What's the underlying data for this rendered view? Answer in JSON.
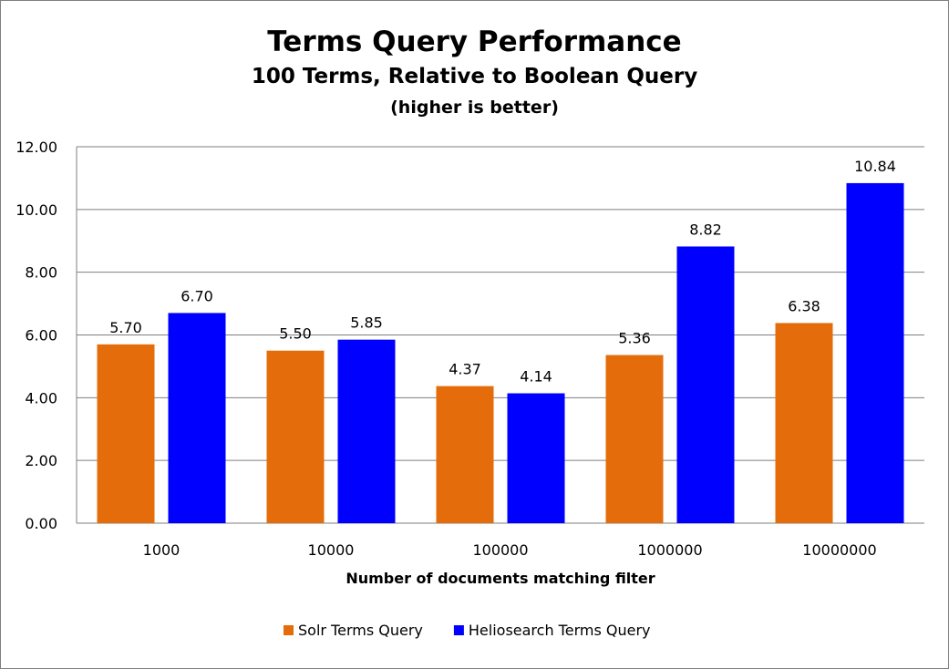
{
  "chart_data": {
    "type": "bar",
    "title": "Terms Query Performance",
    "subtitle": "100 Terms, Relative to Boolean Query",
    "note": "(higher is better)",
    "xlabel": "Number of documents matching filter",
    "ylabel": "",
    "categories": [
      "1000",
      "10000",
      "100000",
      "1000000",
      "10000000"
    ],
    "series": [
      {
        "name": "Solr Terms Query",
        "color": "#E46C0A",
        "values": [
          5.7,
          5.5,
          4.37,
          5.36,
          6.38
        ]
      },
      {
        "name": "Heliosearch Terms Query",
        "color": "#0000FF",
        "values": [
          6.7,
          5.85,
          4.14,
          8.82,
          10.84
        ]
      }
    ],
    "ylim": [
      0,
      12
    ],
    "yticks": [
      "0.00",
      "2.00",
      "4.00",
      "6.00",
      "8.00",
      "10.00",
      "12.00"
    ],
    "grid": true,
    "legend": "bottom"
  }
}
